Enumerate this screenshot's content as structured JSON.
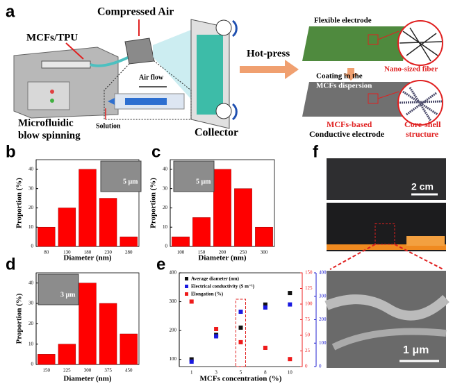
{
  "panel_labels": [
    "a",
    "b",
    "c",
    "d",
    "e",
    "f"
  ],
  "panel_a": {
    "compressed_air": "Compressed Air",
    "mcfs_tpu": "MCFs/TPU",
    "air_flow": "Air flow",
    "solution": "Solution",
    "spinning": [
      "Microfluidic",
      "blow spinning"
    ],
    "collector": "Collector",
    "hot_press": "Hot-press",
    "flexible_electrode": "Flexible electrode",
    "nano_fiber": "Nano-sized fiber",
    "coating": [
      "Coating in the",
      "MCFs dispersion"
    ],
    "conductive": [
      "MCFs-based",
      "Conductive electrode"
    ],
    "core_shell": [
      "Core-shell",
      "structure"
    ]
  },
  "panel_f": {
    "scale_top": "2 cm",
    "scale_bottom": "1 μm"
  },
  "chart_data": [
    {
      "type": "bar",
      "categories": [
        "80",
        "130",
        "180",
        "230",
        "280"
      ],
      "values": [
        10,
        20,
        40,
        25,
        5
      ],
      "color": "#ff0000",
      "ylim": [
        0,
        45
      ],
      "yticks": [
        0,
        10,
        20,
        30,
        40
      ],
      "y_label": "Proportion (%)",
      "x_label": "Diameter (nm)",
      "inset_label": "5 μm"
    },
    {
      "type": "bar",
      "categories": [
        "100",
        "150",
        "200",
        "250",
        "300"
      ],
      "values": [
        5,
        15,
        40,
        30,
        10
      ],
      "color": "#ff0000",
      "ylim": [
        0,
        45
      ],
      "yticks": [
        0,
        10,
        20,
        30,
        40
      ],
      "y_label": "Proportion (%)",
      "x_label": "Diameter (nm)",
      "inset_label": "5 μm"
    },
    {
      "type": "bar",
      "categories": [
        "150",
        "225",
        "300",
        "375",
        "450"
      ],
      "values": [
        5,
        10,
        40,
        30,
        15
      ],
      "color": "#ff0000",
      "ylim": [
        0,
        45
      ],
      "yticks": [
        0,
        10,
        20,
        30,
        40
      ],
      "y_label": "Proportion (%)",
      "x_label": "Diameter (nm)",
      "inset_label": "3 μm"
    },
    {
      "type": "scatter",
      "categories": [
        "1",
        "3",
        "5",
        "8",
        "10"
      ],
      "x_label": "MCFs concentration (%)",
      "ylim": [
        75,
        400
      ],
      "yticks": [
        100,
        200,
        300,
        400
      ],
      "y2lim": [
        0,
        400
      ],
      "y2ticks": [
        0,
        100,
        200,
        300,
        400
      ],
      "y2color": "#2020d0",
      "y3lim": [
        0,
        150
      ],
      "y3ticks": [
        0,
        25,
        50,
        75,
        100,
        125,
        150
      ],
      "y3color": "#ee2020",
      "series": [
        {
          "name": "Average diameter (nm)",
          "color": "#111111",
          "values": [
            100,
            185,
            210,
            290,
            330
          ]
        },
        {
          "name": "Electrical conductivity (S m⁻¹)",
          "color": "#1a1ae0",
          "axis": "y2",
          "values": [
            21,
            129,
            234,
            252,
            265
          ]
        },
        {
          "name": "Elongation (%)",
          "color": "#ee1a1a",
          "axis": "y3",
          "values": [
            104,
            60,
            39,
            30,
            12
          ]
        }
      ]
    }
  ]
}
